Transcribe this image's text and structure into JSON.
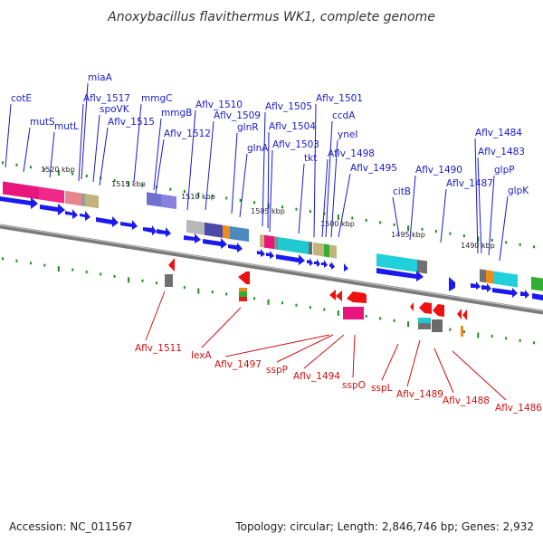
{
  "title": "Anoxybacillus flavithermus WK1, complete genome",
  "footer": {
    "accession": "Accession: NC_011567",
    "topology": "Topology: circular; Length: 2,846,746 bp; Genes: 2,932"
  },
  "colors": {
    "plus_label": "#1a1acc",
    "minus_label": "#cc1111",
    "backbone": "#808080",
    "tick": "#1e8c1e",
    "arrow_plus": "#1a1aee",
    "arrow_minus": "#ee1111"
  },
  "kbp_markers": [
    "1520 kbp",
    "1515 kbp",
    "1510 kbp",
    "1505 kbp",
    "1500 kbp",
    "1495 kbp",
    "1490 kbp"
  ],
  "plus_genes": [
    "cotE",
    "mutS",
    "mutL",
    "miaA",
    "Aflv_1517",
    "spoVK",
    "Aflv_1515",
    "mmgC",
    "mmgB",
    "Aflv_1512",
    "Aflv_1510",
    "Aflv_1509",
    "glnR",
    "glnA",
    "Aflv_1505",
    "Aflv_1504",
    "Aflv_1503",
    "tkt",
    "Aflv_1501",
    "ccdA",
    "yneI",
    "Aflv_1498",
    "Aflv_1495",
    "citB",
    "Aflv_1490",
    "Aflv_1487",
    "Aflv_1484",
    "Aflv_1483",
    "glpP",
    "glpK"
  ],
  "minus_genes": [
    "Aflv_1511",
    "lexA",
    "Aflv_1497",
    "sspP",
    "Aflv_1494",
    "sspO",
    "sspL",
    "Aflv_1489",
    "Aflv_1488",
    "Aflv_1486"
  ]
}
